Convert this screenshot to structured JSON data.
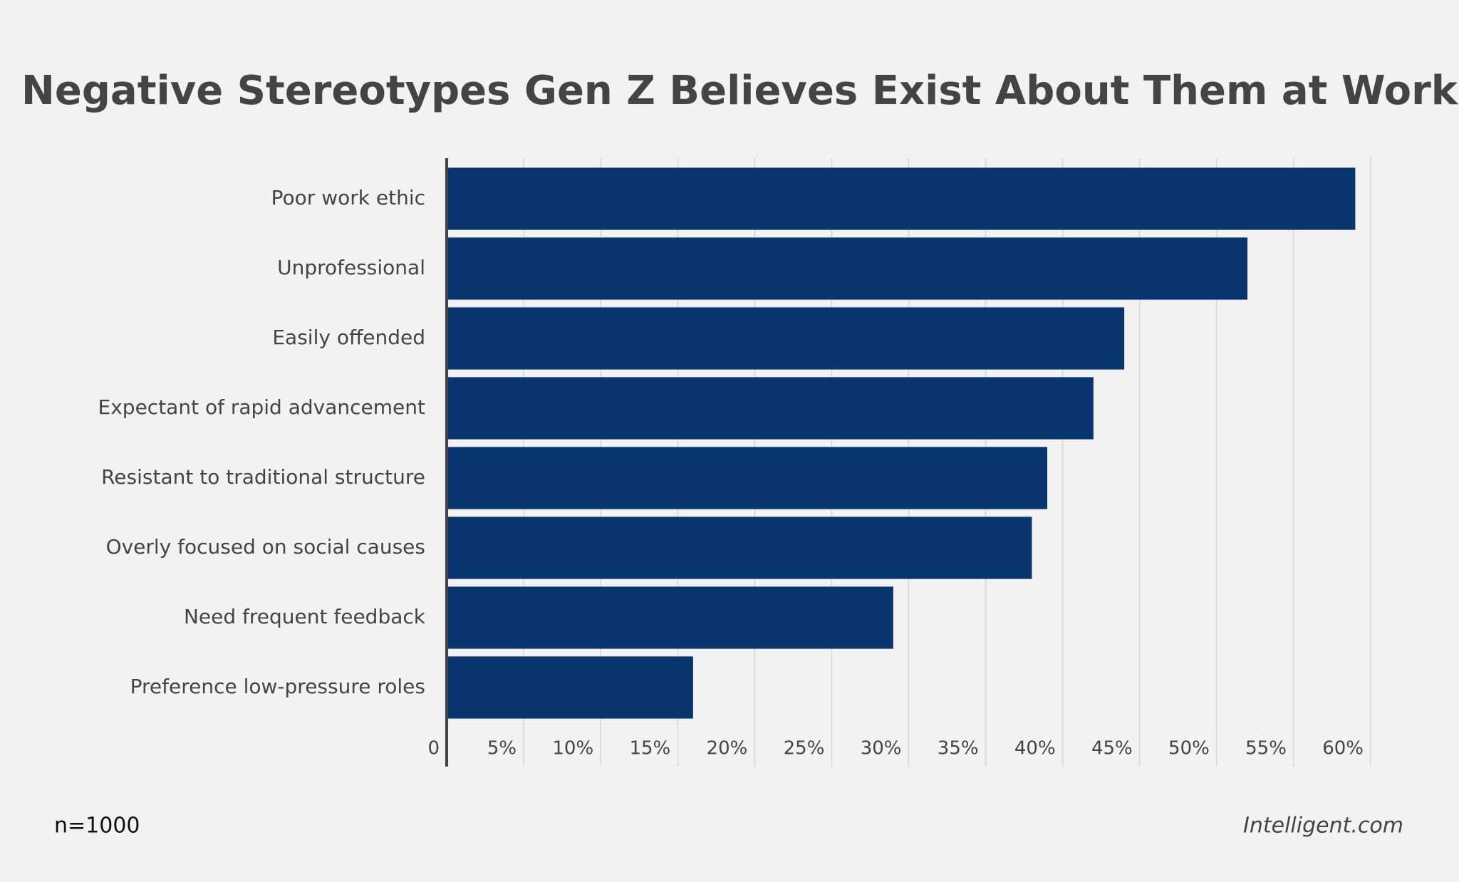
{
  "chart_data": {
    "type": "bar",
    "orientation": "horizontal",
    "title": "Negative Stereotypes Gen Z Believes Exist About Them at Work",
    "categories": [
      "Poor work ethic",
      "Unprofessional",
      "Easily offended",
      "Expectant of rapid advancement",
      "Resistant to traditional structure",
      "Overly focused on social causes",
      "Need frequent feedback",
      "Preference low-pressure roles"
    ],
    "values": [
      59,
      52,
      44,
      42,
      39,
      38,
      29,
      16
    ],
    "color": "#08356e",
    "xlim": [
      0,
      60
    ],
    "xticks": [
      0,
      {
        "value": 5,
        "label": "5%"
      },
      {
        "value": 10,
        "label": "10%"
      },
      {
        "value": 15,
        "label": "15%"
      },
      {
        "value": 20,
        "label": "20%"
      },
      {
        "value": 25,
        "label": "25%"
      },
      {
        "value": 30,
        "label": "30%"
      },
      {
        "value": 35,
        "label": "35%"
      },
      {
        "value": 40,
        "label": "40%"
      },
      {
        "value": 45,
        "label": "45%"
      },
      {
        "value": 50,
        "label": "50%"
      },
      {
        "value": 55,
        "label": "55%"
      },
      {
        "value": 60,
        "label": "60%"
      }
    ],
    "grid": true
  },
  "footer": {
    "note": "n=1000",
    "source": "Intelligent.com"
  }
}
